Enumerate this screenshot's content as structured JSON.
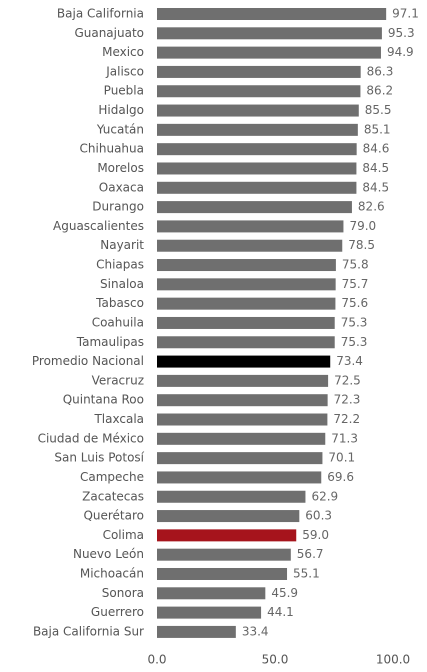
{
  "chart_data": {
    "type": "barh",
    "categories": [
      "Baja California",
      "Guanajuato",
      "Mexico",
      "Jalisco",
      "Puebla",
      "Hidalgo",
      "Yucatán",
      "Chihuahua",
      "Morelos",
      "Oaxaca",
      "Durango",
      "Aguascalientes",
      "Nayarit",
      "Chiapas",
      "Sinaloa",
      "Tabasco",
      "Coahuila",
      "Tamaulipas",
      "Promedio Nacional",
      "Veracruz",
      "Quintana Roo",
      "Tlaxcala",
      "Ciudad de México",
      "San Luis Potosí",
      "Campeche",
      "Zacatecas",
      "Querétaro",
      "Colima",
      "Nuevo León",
      "Michoacán",
      "Sonora",
      "Guerrero",
      "Baja California Sur"
    ],
    "values": [
      97.1,
      95.3,
      94.9,
      86.3,
      86.2,
      85.5,
      85.1,
      84.6,
      84.5,
      84.5,
      82.6,
      79.0,
      78.5,
      75.8,
      75.7,
      75.6,
      75.3,
      75.3,
      73.4,
      72.5,
      72.3,
      72.2,
      71.3,
      70.1,
      69.6,
      62.9,
      60.3,
      59.0,
      56.7,
      55.1,
      45.9,
      44.1,
      33.4
    ],
    "value_labels": [
      "97.1",
      "95.3",
      "94.9",
      "86.3",
      "86.2",
      "85.5",
      "85.1",
      "84.6",
      "84.5",
      "84.5",
      "82.6",
      "79.0",
      "78.5",
      "75.8",
      "75.7",
      "75.6",
      "75.3",
      "75.3",
      "73.4",
      "72.5",
      "72.3",
      "72.2",
      "71.3",
      "70.1",
      "69.6",
      "62.9",
      "60.3",
      "59.0",
      "56.7",
      "55.1",
      "45.9",
      "44.1",
      "33.4"
    ],
    "colors": [
      "#6f6f6f",
      "#6f6f6f",
      "#6f6f6f",
      "#6f6f6f",
      "#6f6f6f",
      "#6f6f6f",
      "#6f6f6f",
      "#6f6f6f",
      "#6f6f6f",
      "#6f6f6f",
      "#6f6f6f",
      "#6f6f6f",
      "#6f6f6f",
      "#6f6f6f",
      "#6f6f6f",
      "#6f6f6f",
      "#6f6f6f",
      "#6f6f6f",
      "#000000",
      "#6f6f6f",
      "#6f6f6f",
      "#6f6f6f",
      "#6f6f6f",
      "#6f6f6f",
      "#6f6f6f",
      "#6f6f6f",
      "#6f6f6f",
      "#a6141c",
      "#6f6f6f",
      "#6f6f6f",
      "#6f6f6f",
      "#6f6f6f",
      "#6f6f6f"
    ],
    "xlim": [
      0,
      100
    ],
    "xticks": [
      {
        "value": 0,
        "label": "0.0"
      },
      {
        "value": 50,
        "label": "50.0"
      },
      {
        "value": 100,
        "label": "100.0"
      }
    ]
  }
}
